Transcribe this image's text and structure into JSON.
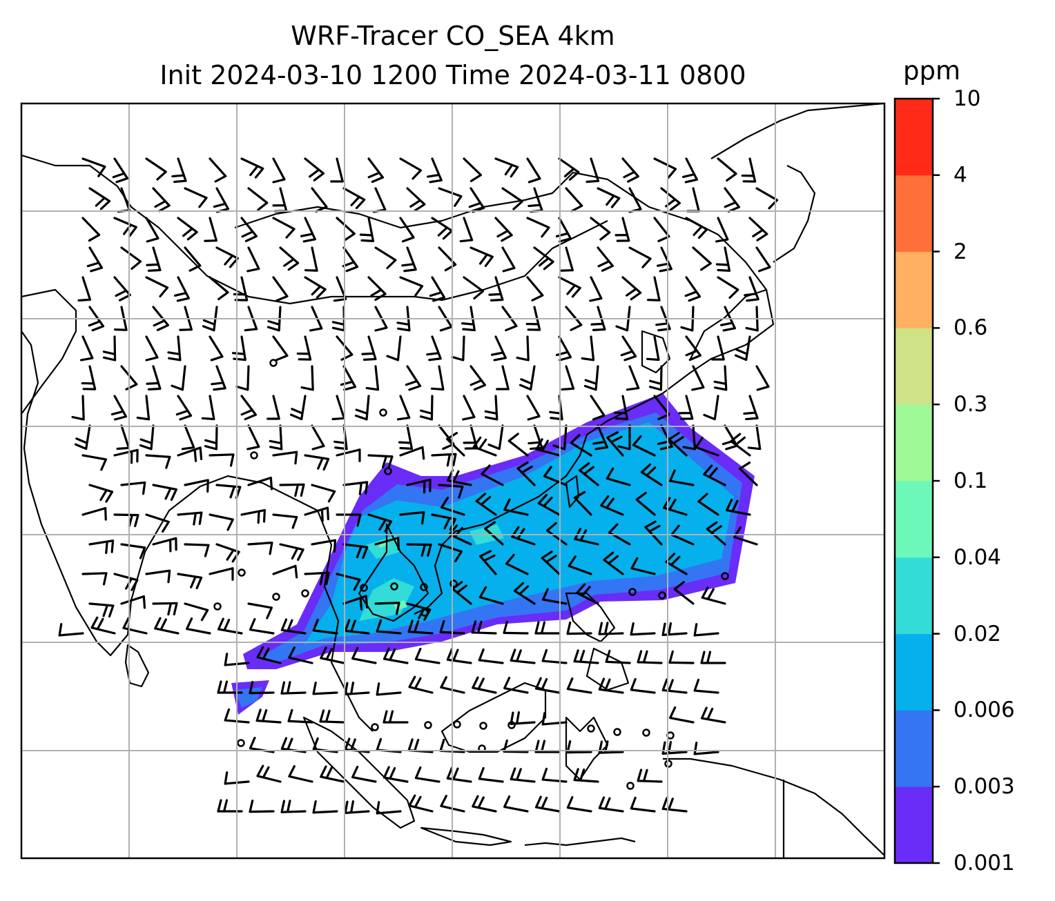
{
  "title": {
    "line1": "WRF-Tracer CO_SEA 4km",
    "line2": "Init 2024-03-10 1200 Time 2024-03-11 0800"
  },
  "colorbar": {
    "units": "ppm",
    "levels": [
      "0.001",
      "0.003",
      "0.006",
      "0.02",
      "0.04",
      "0.1",
      "0.3",
      "0.6",
      "2",
      "4",
      "10"
    ],
    "colors": [
      "#6a2cf7",
      "#3475f3",
      "#06b0ec",
      "#33dcd6",
      "#6cf8b8",
      "#9df995",
      "#cfe286",
      "#ffb060",
      "#ff6f39",
      "#ff2a17"
    ]
  },
  "map": {
    "field": "CO tracer concentration with wind barbs",
    "coastline_color": "#000000",
    "gridline_color": "#b0b0b0"
  }
}
